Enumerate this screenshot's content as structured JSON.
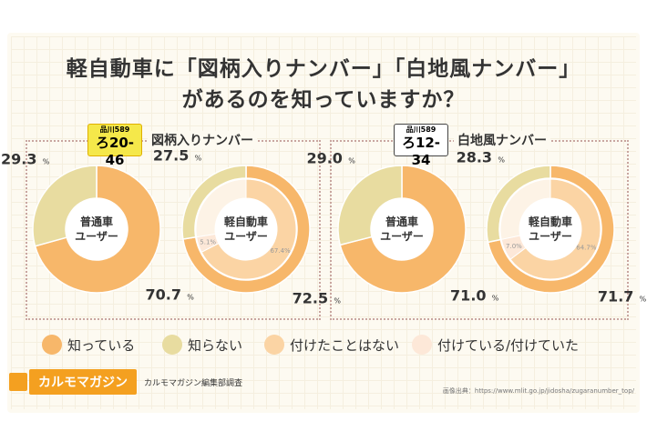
{
  "title_line1": "軽自動車に「図柄入りナンバー」「白地風ナンバー」",
  "title_line2": "があるのを知っていますか？",
  "sections": {
    "left": {
      "label": "図柄入りナンバー",
      "plate_small": "品川589",
      "plate_number": "ろ20-46"
    },
    "right": {
      "label": "白地風ナンバー",
      "plate_small": "品川589",
      "plate_number": "ろ12-34"
    }
  },
  "legend": [
    {
      "label": "知っている",
      "color": "#f7b76a"
    },
    {
      "label": "知らない",
      "color": "#e8dca0"
    },
    {
      "label": "付けたことはない",
      "color": "#fbd4a4"
    },
    {
      "label": "付けている/付けていた",
      "color": "#fde8d8"
    }
  ],
  "credit": {
    "logo": "カルモマガジン",
    "survey": "カルモマガジン編集部調査"
  },
  "source": "画像出典：https://www.mlit.go.jp/jidosha/zugaranumber_top/",
  "chart_data": [
    {
      "type": "pie",
      "center_label": [
        "普通車",
        "ユーザー"
      ],
      "rings": [
        {
          "slices": [
            {
              "label": "知っている",
              "value": 70.7
            },
            {
              "label": "知らない",
              "value": 29.3
            }
          ]
        }
      ]
    },
    {
      "type": "pie",
      "center_label": [
        "軽自動車",
        "ユーザー"
      ],
      "rings": [
        {
          "slices": [
            {
              "label": "知っている",
              "value": 72.5
            },
            {
              "label": "知らない",
              "value": 27.5
            }
          ]
        },
        {
          "slices": [
            {
              "label": "付けたことはない",
              "value": 67.4
            },
            {
              "label": "付けている/付けていた",
              "value": 5.1
            }
          ]
        }
      ]
    },
    {
      "type": "pie",
      "center_label": [
        "普通車",
        "ユーザー"
      ],
      "rings": [
        {
          "slices": [
            {
              "label": "知っている",
              "value": 71.0
            },
            {
              "label": "知らない",
              "value": 29.0
            }
          ]
        }
      ]
    },
    {
      "type": "pie",
      "center_label": [
        "軽自動車",
        "ユーザー"
      ],
      "rings": [
        {
          "slices": [
            {
              "label": "知っている",
              "value": 71.7
            },
            {
              "label": "知らない",
              "value": 28.3
            }
          ]
        },
        {
          "slices": [
            {
              "label": "付けたことはない",
              "value": 64.7
            },
            {
              "label": "付けている/付けていた",
              "value": 7.0
            }
          ]
        }
      ]
    }
  ]
}
